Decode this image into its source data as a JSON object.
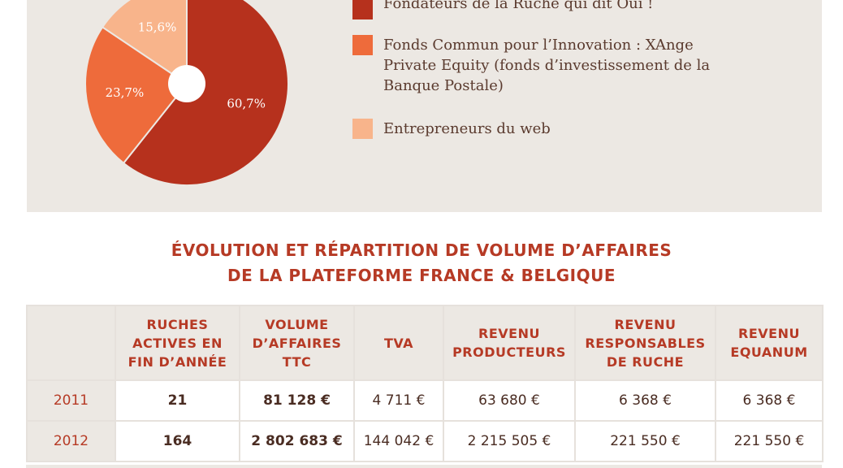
{
  "chart_data": {
    "type": "pie",
    "categories": [
      "Fondateurs de la Ruche qui dit Oui !",
      "Fonds Commun pour l’Innovation : XAnge Private Equity (fonds d’investissement de la Banque Postale)",
      "Entrepreneurs du web"
    ],
    "values": [
      60.7,
      23.7,
      15.6
    ],
    "value_labels": [
      "60,7%",
      "23,7%",
      "15,6%"
    ],
    "colors": [
      "#b6311d",
      "#ee6b3b",
      "#f8b48b"
    ]
  },
  "table": {
    "title": [
      "ÉVOLUTION ET RÉPARTITION DE VOLUME D’AFFAIRES",
      "DE LA PLATEFORME  FRANCE & BELGIQUE"
    ],
    "header": [
      "",
      "RUCHES ACTIVES EN FIN D’ANNÉE",
      "VOLUME D’AFFAIRES TTC",
      "TVA",
      "REVENU PRODUCTEURS",
      "REVENU RESPONSABLES DE RUCHE",
      "REVENU EQUANUM"
    ],
    "rows": [
      [
        "2011",
        "21",
        "81 128 €",
        "4 711 €",
        "63 680 €",
        "6 368 €",
        "6 368 €"
      ],
      [
        "2012",
        "164",
        "2 802 683 €",
        "144 042 €",
        "2 215 505 €",
        "221 550 €",
        "221 550 €"
      ]
    ]
  }
}
